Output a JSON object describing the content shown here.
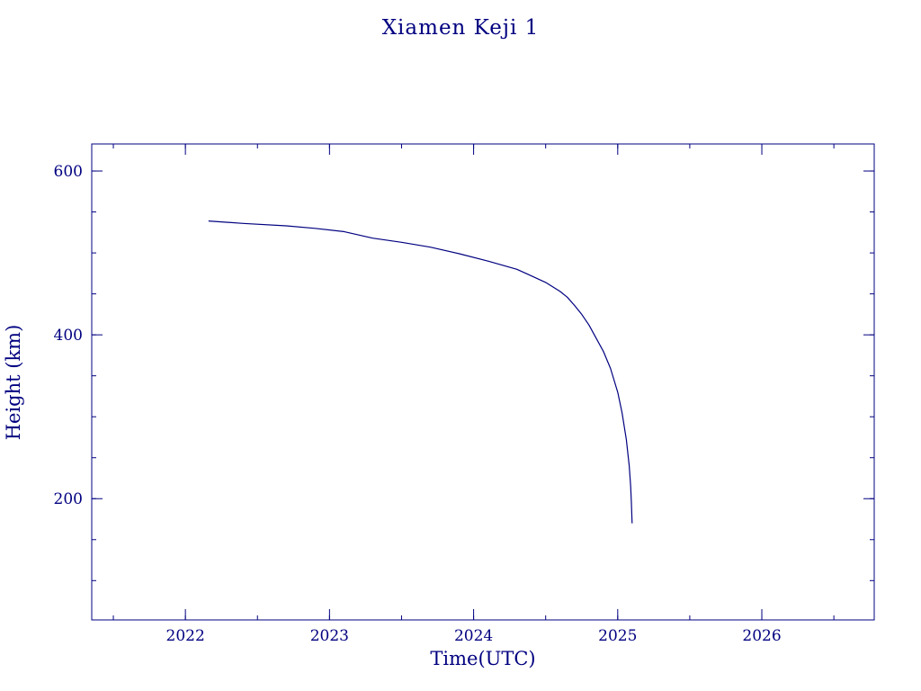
{
  "colors": {
    "ink": "#000080",
    "background": "#ffffff"
  },
  "chart_data": {
    "type": "line",
    "title": "Xiamen Keji 1",
    "xlabel": "Time(UTC)",
    "ylabel": "Height (km)",
    "xlim": [
      2021.35,
      2026.78
    ],
    "ylim": [
      52,
      633
    ],
    "x_ticks": [
      {
        "value": 2022,
        "label": "2022"
      },
      {
        "value": 2023,
        "label": "2023"
      },
      {
        "value": 2024,
        "label": "2024"
      },
      {
        "value": 2025,
        "label": "2025"
      },
      {
        "value": 2026,
        "label": "2026"
      }
    ],
    "x_minor_step": 0.5,
    "y_ticks": [
      {
        "value": 200,
        "label": "200"
      },
      {
        "value": 400,
        "label": "400"
      },
      {
        "value": 600,
        "label": "600"
      }
    ],
    "y_minor_step": 50,
    "grid": false,
    "legend": "none",
    "series": [
      {
        "x": [
          2022.16,
          2022.4,
          2022.7,
          2022.9,
          2023.1,
          2023.2,
          2023.3,
          2023.5,
          2023.7,
          2023.9,
          2024.1,
          2024.3,
          2024.4,
          2024.5,
          2024.6,
          2024.65,
          2024.7,
          2024.75,
          2024.8,
          2024.85,
          2024.9,
          2024.95,
          2025.0,
          2025.03,
          2025.06,
          2025.08,
          2025.09,
          2025.095,
          2025.1
        ],
        "y": [
          539,
          536,
          533,
          530,
          526,
          522,
          518,
          513,
          507,
          499,
          490,
          480,
          472,
          464,
          453,
          446,
          436,
          425,
          412,
          396,
          380,
          359,
          330,
          305,
          272,
          240,
          215,
          195,
          170
        ]
      }
    ]
  }
}
